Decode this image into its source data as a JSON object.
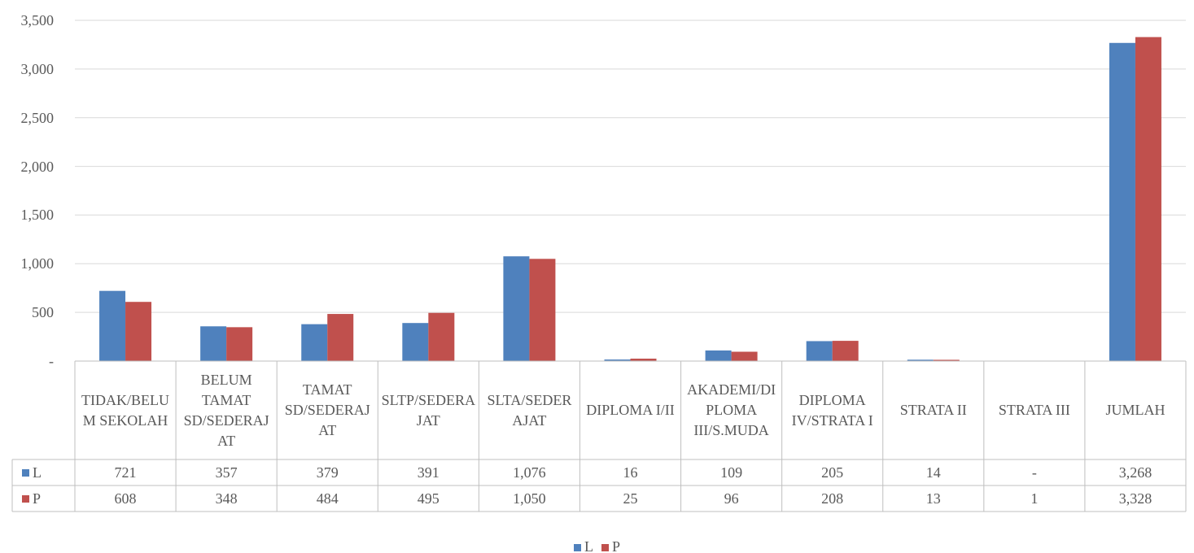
{
  "chart_data": {
    "type": "bar",
    "categories": [
      "TIDAK/BELUM SEKOLAH",
      "BELUM TAMAT SD/SEDERAJAT",
      "TAMAT SD/SEDERAJAT",
      "SLTP/SEDERAJAT",
      "SLTA/SEDERAJAT",
      "DIPLOMA I/II",
      "AKADEMI/DIPLOMA III/S.MUDA",
      "DIPLOMA IV/STRATA I",
      "STRATA II",
      "STRATA III",
      "JUMLAH"
    ],
    "series": [
      {
        "name": "L",
        "color": "#4f81bd",
        "values": [
          721,
          357,
          379,
          391,
          1076,
          16,
          109,
          205,
          14,
          0,
          3268
        ],
        "value_labels": [
          "721",
          "357",
          "379",
          "391",
          "1,076",
          "16",
          "109",
          "205",
          "14",
          "-",
          "3,268"
        ]
      },
      {
        "name": "P",
        "color": "#c0504d",
        "values": [
          608,
          348,
          484,
          495,
          1050,
          25,
          96,
          208,
          13,
          1,
          3328
        ],
        "value_labels": [
          "608",
          "348",
          "484",
          "495",
          "1,050",
          "25",
          "96",
          "208",
          "13",
          "1",
          "3,328"
        ]
      }
    ],
    "ylim": [
      0,
      3500
    ],
    "yticks": [
      {
        "value": 0,
        "label": "-"
      },
      500,
      {
        "value": 1000,
        "label": "1,000"
      },
      {
        "value": 1500,
        "label": "1,500"
      },
      {
        "value": 2000,
        "label": "2,000"
      },
      {
        "value": 2500,
        "label": "2,500"
      },
      {
        "value": 3000,
        "label": "3,000"
      },
      {
        "value": 3500,
        "label": "3,500"
      }
    ],
    "grid": true,
    "legend": "bottom"
  }
}
